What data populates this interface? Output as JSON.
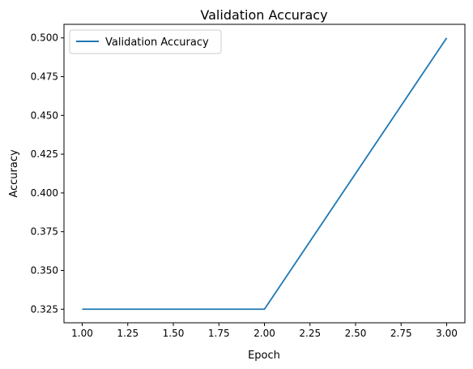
{
  "chart_data": {
    "type": "line",
    "title": "Validation Accuracy",
    "xlabel": "Epoch",
    "ylabel": "Accuracy",
    "xlim": [
      0.9,
      3.1
    ],
    "ylim": [
      0.31625,
      0.50875
    ],
    "x_ticks": [
      1.0,
      1.25,
      1.5,
      1.75,
      2.0,
      2.25,
      2.5,
      2.75,
      3.0
    ],
    "x_tick_labels": [
      "1.00",
      "1.25",
      "1.50",
      "1.75",
      "2.00",
      "2.25",
      "2.50",
      "2.75",
      "3.00"
    ],
    "y_ticks": [
      0.325,
      0.35,
      0.375,
      0.4,
      0.425,
      0.45,
      0.475,
      0.5
    ],
    "y_tick_labels": [
      "0.325",
      "0.350",
      "0.375",
      "0.400",
      "0.425",
      "0.450",
      "0.475",
      "0.500"
    ],
    "grid": false,
    "legend_position": "top-left",
    "series": [
      {
        "name": "Validation Accuracy",
        "color": "#1f77b4",
        "x": [
          1,
          2,
          3
        ],
        "y": [
          0.325,
          0.325,
          0.5
        ]
      }
    ]
  }
}
